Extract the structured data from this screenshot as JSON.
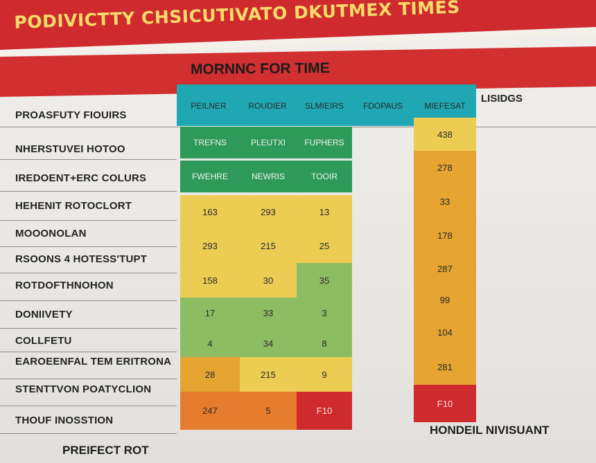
{
  "title": "PODIVICTTY CHSICUTIVATO DKUTMEX TIMES",
  "subtitle": "MORNNC FOR TIME",
  "side_label": "LISIDGS",
  "footer_left": "PREIFECT ROT",
  "footer_right": "HONDEIL NIVISUANT",
  "colors": {
    "banner": "#cf2a2e",
    "title_text": "#f7dc6a",
    "teal": "#1fa8b4",
    "dark_green": "#2e9a5a",
    "yellow": "#eccc52",
    "light_green": "#8dbd62",
    "orange": "#e6a431",
    "deep_orange": "#e57b2c",
    "red": "#cf2a2e"
  },
  "chart_data": {
    "type": "table",
    "header_row": [
      "PEILNER",
      "ROUDIER",
      "SLMIEIRS",
      "FDOPAUS",
      "MIEFESAT"
    ],
    "row_labels": [
      "PROASFUTY FIOUIRS",
      "NHERSTUVEI HOTOO",
      "IREDOENT+ERC COLURS",
      "HEHENIT ROTOCLORT",
      "MOOONOLAN",
      "RSOONS 4 HOTESS'TUPT",
      "ROTDOFTHNOHON",
      "DONIIVETY",
      "COLLFETU",
      "EAROEENFAL TEM ERITRONA",
      "STENTTVON POATYCLION",
      "THOUF INOSSTION"
    ],
    "left_block": [
      [
        "TREFNS",
        "PLEUTXI",
        "FUPHERS"
      ],
      [
        "FWEHRE",
        "NEWRIS",
        "TOOIR"
      ],
      [
        "163",
        "293",
        "13"
      ],
      [
        "293",
        "215",
        "25"
      ],
      [
        "158",
        "30",
        "35"
      ],
      [
        "17",
        "33",
        "3"
      ],
      [
        "4",
        "34",
        "8"
      ],
      [
        "28",
        "215",
        "9"
      ],
      [
        "247",
        "5",
        "F10"
      ]
    ],
    "right_column": [
      "438",
      "278",
      "33",
      "178",
      "287",
      "99",
      "104",
      "281",
      "F10"
    ]
  }
}
